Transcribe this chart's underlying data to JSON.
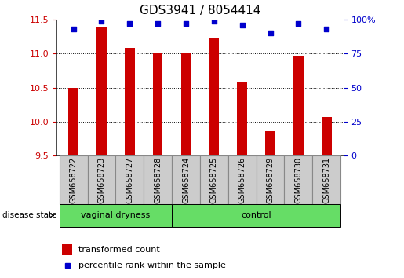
{
  "title": "GDS3941 / 8054414",
  "samples": [
    "GSM658722",
    "GSM658723",
    "GSM658727",
    "GSM658728",
    "GSM658724",
    "GSM658725",
    "GSM658726",
    "GSM658729",
    "GSM658730",
    "GSM658731"
  ],
  "bar_values": [
    10.49,
    11.38,
    11.08,
    11.0,
    11.0,
    11.22,
    10.57,
    9.86,
    10.97,
    10.07
  ],
  "percentile_values": [
    93,
    99,
    97,
    97,
    97,
    99,
    96,
    90,
    97,
    93
  ],
  "ylim_left": [
    9.5,
    11.5
  ],
  "ylim_right": [
    0,
    100
  ],
  "yticks_left": [
    9.5,
    10.0,
    10.5,
    11.0,
    11.5
  ],
  "yticks_right": [
    0,
    25,
    50,
    75,
    100
  ],
  "bar_color": "#cc0000",
  "percentile_color": "#0000cc",
  "group1_label": "vaginal dryness",
  "group2_label": "control",
  "group1_indices": [
    0,
    1,
    2,
    3
  ],
  "group2_indices": [
    4,
    5,
    6,
    7,
    8,
    9
  ],
  "group_bg": "#66dd66",
  "sample_bg": "#cccccc",
  "sample_border": "#888888",
  "legend_bar_label": "transformed count",
  "legend_pct_label": "percentile rank within the sample",
  "disease_state_label": "disease state",
  "bar_axis_color": "#cc0000",
  "pct_axis_color": "#0000cc",
  "grid_color": "#000000",
  "title_fontsize": 11,
  "tick_fontsize": 8,
  "label_fontsize": 8,
  "bar_width": 0.35
}
